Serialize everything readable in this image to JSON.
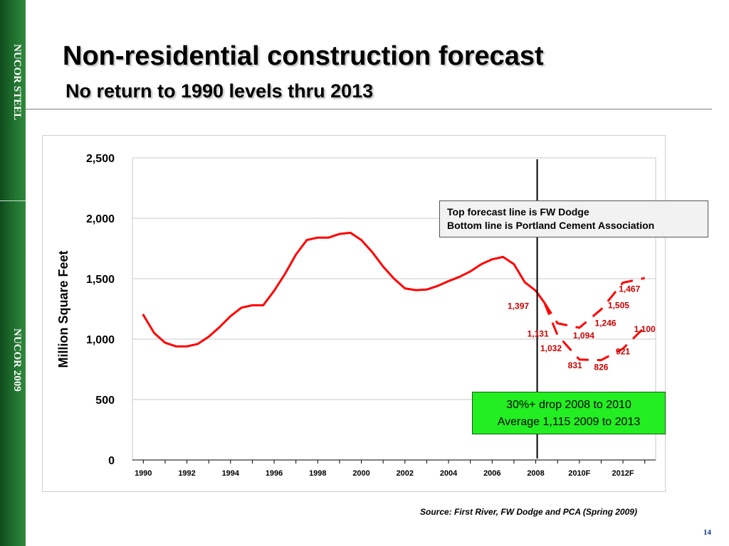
{
  "sidebar": {
    "top_text": "NUCOR STEEL",
    "bottom_text": "NUCOR 2009",
    "color": "#1d6b2c"
  },
  "slide": {
    "title": "Non-residential construction forecast",
    "subtitle": "No return to 1990 levels thru 2013",
    "source": "Source: First River, FW Dodge and PCA (Spring 2009)",
    "page_number": "14"
  },
  "legend_box": {
    "line1": "Top forecast line is FW Dodge",
    "line2": "Bottom line is Portland Cement Association"
  },
  "callout": {
    "line1": "30%+ drop 2008 to 2010",
    "line2": "Average 1,115 2009 to 2013",
    "color": "#22ee22"
  },
  "chart_data": {
    "type": "line",
    "ylabel": "Million Square Feet",
    "ylim": [
      0,
      2500
    ],
    "y_ticks": [
      0,
      500,
      1000,
      1500,
      2000,
      2500
    ],
    "y_tick_labels": [
      "0",
      "500",
      "1,000",
      "1,500",
      "2,000",
      "2,500"
    ],
    "x_tick_labels": [
      "1990",
      "1992",
      "1994",
      "1996",
      "1998",
      "2000",
      "2002",
      "2004",
      "2006",
      "2008",
      "2010F",
      "2012F"
    ],
    "grid": true,
    "colors": {
      "series": "#ff0000",
      "label": "#cc0000",
      "marker_line": "#000000"
    },
    "vertical_line_at": 2008,
    "series": [
      {
        "style": "solid",
        "x": [
          1990.0,
          1990.5,
          1991.0,
          1991.5,
          1992.0,
          1992.5,
          1993.0,
          1993.5,
          1994.0,
          1994.5,
          1995.0,
          1995.5,
          1996.0,
          1996.5,
          1997.0,
          1997.5,
          1998.0,
          1998.5,
          1999.0,
          1999.5,
          2000.0,
          2000.5,
          2001.0,
          2001.5,
          2002.0,
          2002.5,
          2003.0,
          2003.5,
          2004.0,
          2004.5,
          2005.0,
          2005.5,
          2006.0,
          2006.5,
          2007.0,
          2007.5,
          2008.0,
          2008.4
        ],
        "values": [
          1200,
          1050,
          970,
          940,
          940,
          960,
          1020,
          1100,
          1190,
          1260,
          1280,
          1280,
          1400,
          1540,
          1700,
          1820,
          1840,
          1840,
          1870,
          1880,
          1820,
          1720,
          1600,
          1500,
          1420,
          1405,
          1410,
          1440,
          1480,
          1515,
          1560,
          1620,
          1660,
          1680,
          1620,
          1470,
          1400,
          1300
        ]
      },
      {
        "style": "dashed",
        "name": "FW Dodge",
        "x": [
          2008.4,
          2009.0,
          2010.0,
          2011.0,
          2012.0,
          2013.0
        ],
        "values": [
          1300,
          1131,
          1094,
          1246,
          1467,
          1505
        ]
      },
      {
        "style": "dashed",
        "name": "Portland Cement Association",
        "x": [
          2008.4,
          2009.0,
          2010.0,
          2011.0,
          2012.0,
          2013.0
        ],
        "values": [
          1300,
          1032,
          831,
          826,
          921,
          1100
        ]
      }
    ],
    "data_labels": [
      {
        "text": "1,397",
        "x": 2007.2,
        "y": 1250
      },
      {
        "text": "1,131",
        "x": 2008.1,
        "y": 1020
      },
      {
        "text": "1,032",
        "x": 2008.7,
        "y": 900
      },
      {
        "text": "1,094",
        "x": 2010.2,
        "y": 1005
      },
      {
        "text": "831",
        "x": 2009.8,
        "y": 760
      },
      {
        "text": "1,246",
        "x": 2011.2,
        "y": 1110
      },
      {
        "text": "826",
        "x": 2011.0,
        "y": 745
      },
      {
        "text": "1,505",
        "x": 2011.8,
        "y": 1255
      },
      {
        "text": "921",
        "x": 2012.0,
        "y": 875
      },
      {
        "text": "1,467",
        "x": 2012.3,
        "y": 1390
      },
      {
        "text": "1,100",
        "x": 2013.0,
        "y": 1060
      }
    ]
  }
}
